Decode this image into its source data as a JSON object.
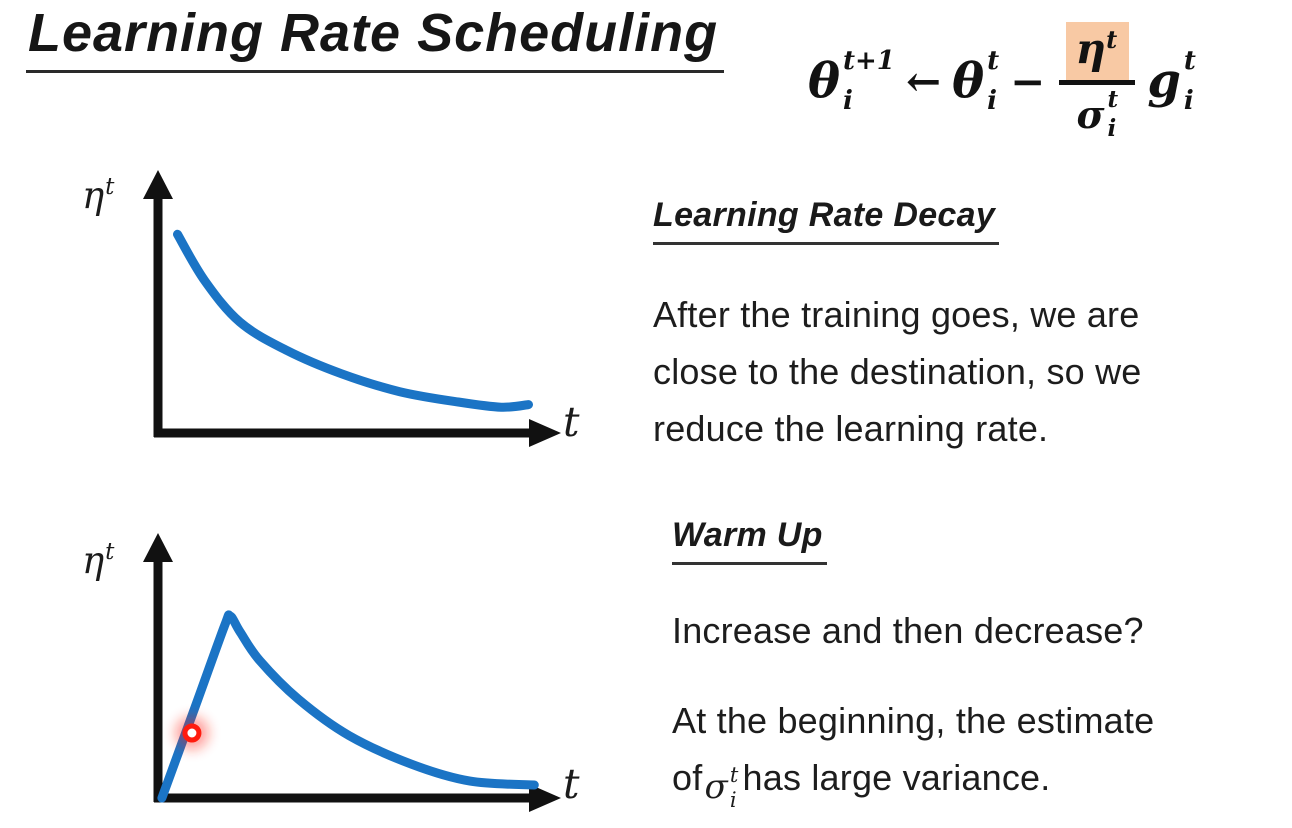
{
  "slide_title": "Learning Rate Scheduling",
  "formula": {
    "lhs": {
      "base": "θ",
      "sup": "t+1",
      "sub": "i"
    },
    "arrow": "←",
    "rhs": {
      "base": "θ",
      "sup": "t",
      "sub": "i"
    },
    "minus": "−",
    "fraction": {
      "num": {
        "base": "η",
        "sup": "t"
      },
      "den": {
        "base": "σ",
        "sup": "t",
        "sub": "i"
      }
    },
    "grad": {
      "base": "g",
      "sup": "t",
      "sub": "i"
    }
  },
  "sections": {
    "decay": {
      "heading": "Learning Rate Decay",
      "lines": [
        "After the training goes, we are",
        "close to the destination, so we",
        "reduce the learning rate."
      ]
    },
    "warmup": {
      "heading": "Warm Up",
      "question": "Increase and then decrease?",
      "line1": "At the beginning, the estimate",
      "line2_prefix": "of",
      "sigma": {
        "base": "σ",
        "sup": "t",
        "sub": "i"
      },
      "line2_suffix": "has large variance."
    }
  },
  "chart_data": [
    {
      "type": "line",
      "name": "learning_rate_decay",
      "xlabel": "t",
      "ylabel": {
        "base": "η",
        "sup": "t"
      },
      "description": "Learning rate decays monotonically over training time, flattening near zero.",
      "points": [
        [
          0.05,
          0.77
        ],
        [
          0.12,
          0.59
        ],
        [
          0.21,
          0.43
        ],
        [
          0.33,
          0.32
        ],
        [
          0.47,
          0.23
        ],
        [
          0.62,
          0.16
        ],
        [
          0.77,
          0.12
        ],
        [
          0.88,
          0.1
        ],
        [
          0.95,
          0.11
        ]
      ]
    },
    {
      "type": "line",
      "name": "warm_up",
      "xlabel": "t",
      "ylabel": {
        "base": "η",
        "sup": "t"
      },
      "description": "Learning rate increases linearly to an early peak, then decays toward zero.",
      "points": [
        [
          0.01,
          0.0
        ],
        [
          0.095,
          0.35
        ],
        [
          0.17,
          0.66
        ],
        [
          0.185,
          0.7
        ],
        [
          0.21,
          0.64
        ],
        [
          0.26,
          0.53
        ],
        [
          0.36,
          0.38
        ],
        [
          0.49,
          0.24
        ],
        [
          0.65,
          0.13
        ],
        [
          0.8,
          0.065
        ],
        [
          0.965,
          0.05
        ]
      ],
      "marker": {
        "type": "red_ring",
        "x": 0.087,
        "y": 0.25
      }
    }
  ],
  "colors": {
    "curve_blue": "#1B74C5",
    "axis_black": "#111111",
    "highlight_orange": "#F8C9A4",
    "marker_red": "#FF1B0E",
    "text_black": "#1C1C1C"
  }
}
